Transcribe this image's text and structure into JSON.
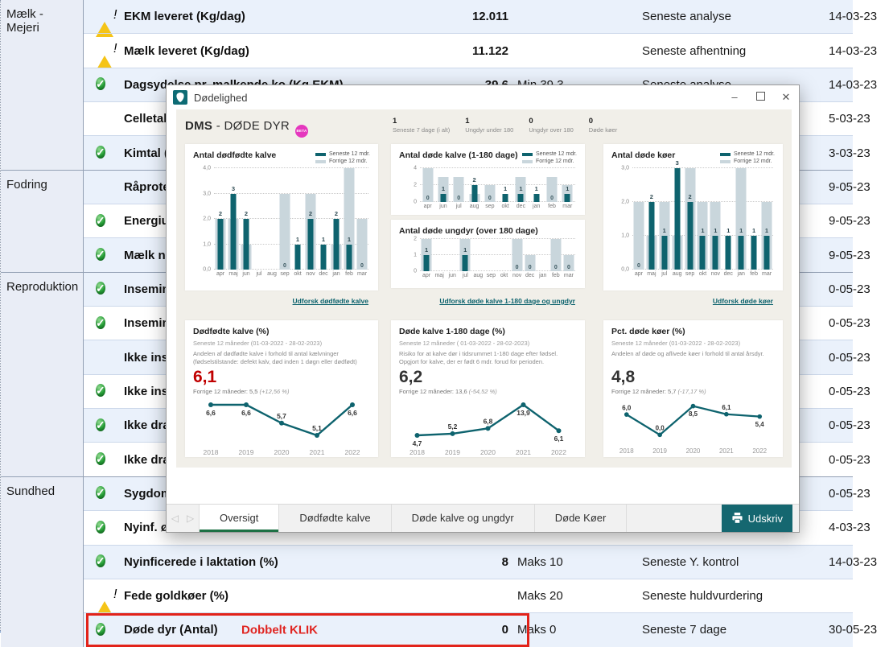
{
  "table": {
    "groups": [
      {
        "label": "Mælk - Mejeri",
        "rows": [
          {
            "status": "warning",
            "label": "EKM leveret (Kg/dag)",
            "value": "12.011",
            "limit": "",
            "metric": "Seneste analyse",
            "date": "14-03-23"
          },
          {
            "status": "warning",
            "label": "Mælk leveret (Kg/dag)",
            "value": "11.122",
            "limit": "",
            "metric": "Seneste afhentning",
            "date": "14-03-23"
          },
          {
            "status": "ok",
            "label": "Dagsydelse pr. malkende ko (Kg EKM)",
            "value": "39,6",
            "limit": "Min 39,3",
            "metric": "Seneste analyse",
            "date": "14-03-23"
          },
          {
            "status": "alert",
            "label": "Celletal",
            "value": "",
            "limit": "",
            "metric": "",
            "date": "5-03-23"
          },
          {
            "status": "ok",
            "label": "Kimtal (",
            "value": "",
            "limit": "",
            "metric": "",
            "date": "3-03-23"
          }
        ]
      },
      {
        "label": "Fodring",
        "rows": [
          {
            "status": "alert",
            "label": "Råprote",
            "value": "",
            "limit": "",
            "metric": "",
            "date": "9-05-23"
          },
          {
            "status": "ok",
            "label": "Energiu",
            "value": "",
            "limit": "",
            "metric": "",
            "date": "9-05-23"
          },
          {
            "status": "ok",
            "label": "Mælk n",
            "value": "",
            "limit": "",
            "metric": "",
            "date": "9-05-23"
          }
        ]
      },
      {
        "label": "Reproduktion",
        "rows": [
          {
            "status": "ok",
            "label": "Insemin",
            "value": "",
            "limit": "",
            "metric": "",
            "date": "0-05-23"
          },
          {
            "status": "ok",
            "label": "Insemin",
            "value": "",
            "limit": "",
            "metric": "",
            "date": "0-05-23"
          },
          {
            "status": "alert",
            "label": "Ikke ins",
            "value": "",
            "limit": "",
            "metric": "",
            "date": "0-05-23"
          },
          {
            "status": "ok",
            "label": "Ikke ins",
            "value": "",
            "limit": "",
            "metric": "",
            "date": "0-05-23"
          },
          {
            "status": "ok",
            "label": "Ikke dra",
            "value": "",
            "limit": "",
            "metric": "",
            "date": "0-05-23"
          },
          {
            "status": "ok",
            "label": "Ikke dra",
            "value": "",
            "limit": "",
            "metric": "",
            "date": "0-05-23"
          }
        ]
      },
      {
        "label": "Sundhed",
        "rows": [
          {
            "status": "ok",
            "label": "Sygdom",
            "value": "",
            "limit": "",
            "metric": "",
            "date": "0-05-23"
          },
          {
            "status": "ok",
            "label": "Nyinf. ø",
            "value": "",
            "limit": "",
            "metric": "",
            "date": "4-03-23"
          },
          {
            "status": "ok",
            "label": "Nyinficerede i laktation (%)",
            "value": "8",
            "limit": "Maks 10",
            "metric": "Seneste Y. kontrol",
            "date": "14-03-23"
          },
          {
            "status": "warning",
            "label": "Fede goldkøer (%)",
            "value": "",
            "limit": "Maks 20",
            "metric": "Seneste huldvurdering",
            "date": ""
          },
          {
            "status": "ok",
            "label": "Døde dyr (Antal)",
            "annotation": "Dobbelt KLIK",
            "value": "0",
            "limit": "Maks 0",
            "metric": "Seneste 7 dage",
            "date": "30-05-23",
            "highlight": true
          }
        ]
      }
    ]
  },
  "dialog": {
    "title": "Dødelighed",
    "header": {
      "title_bold": "DMS",
      "title_rest": " - DØDE DYR",
      "badge": "BETA",
      "stats": [
        {
          "value": "1",
          "label": "Seneste 7 dage (i alt)"
        },
        {
          "value": "1",
          "label": "Ungdyr under 180"
        },
        {
          "value": "0",
          "label": "Ungdyr over 180"
        },
        {
          "value": "0",
          "label": "Døde køer"
        }
      ]
    },
    "legend": {
      "seneste": "Seneste 12 mdr.",
      "forrige": "Forrige 12 mdr."
    },
    "tabs": {
      "items": [
        "Oversigt",
        "Dødfødte kalve",
        "Døde kalve og ungdyr",
        "Døde Køer"
      ],
      "active": 0
    },
    "print_label": "Udskriv"
  },
  "colors": {
    "teal": "#0e636e",
    "light_bar": "#c9d6dc",
    "red_value": "#c00000",
    "tab_green": "#1e7145",
    "badge_pink": "#e537be",
    "link_teal": "#0c626d"
  },
  "chart_data": [
    {
      "id": "stillborn_calves_monthly",
      "type": "bar",
      "title": "Antal dødfødte kalve",
      "categories": [
        "apr",
        "maj",
        "jun",
        "jul",
        "aug",
        "sep",
        "okt",
        "nov",
        "dec",
        "jan",
        "feb",
        "mar"
      ],
      "series": [
        {
          "name": "Seneste 12 mdr.",
          "values": [
            2,
            3,
            2,
            0,
            0,
            0,
            1,
            2,
            1,
            2,
            1,
            0
          ]
        },
        {
          "name": "Forrige 12 mdr.",
          "values": [
            2,
            2,
            1,
            0,
            0,
            3,
            0,
            3,
            0,
            1,
            4,
            2
          ]
        }
      ],
      "ylim": [
        0,
        4
      ],
      "yticks": [
        "0,0",
        "1,0",
        "2,0",
        "3,0",
        "4,0"
      ],
      "link": "Udforsk dødfødte kalve"
    },
    {
      "id": "dead_calves_1_180_monthly",
      "type": "bar",
      "title": "Antal døde kalve (1-180 dage)",
      "categories": [
        "apr",
        "jun",
        "jul",
        "aug",
        "sep",
        "okt",
        "dec",
        "jan",
        "feb",
        "mar"
      ],
      "series": [
        {
          "name": "Seneste 12 mdr.",
          "values": [
            0,
            1,
            0,
            2,
            0,
            1,
            1,
            1,
            0,
            1
          ]
        },
        {
          "name": "Forrige 12 mdr.",
          "values": [
            4,
            3,
            3,
            1,
            2,
            0,
            3,
            0,
            3,
            2
          ]
        }
      ],
      "ylim": [
        0,
        4
      ],
      "yticks": [
        "0",
        "2",
        "4"
      ],
      "link": ""
    },
    {
      "id": "dead_youngstock_over180_monthly",
      "type": "bar",
      "title": "Antal døde ungdyr (over 180 dage)",
      "categories": [
        "apr",
        "maj",
        "jun",
        "jul",
        "aug",
        "sep",
        "okt",
        "nov",
        "dec",
        "jan",
        "feb",
        "mar"
      ],
      "series": [
        {
          "name": "Seneste 12 mdr.",
          "values": [
            1,
            0,
            0,
            1,
            0,
            0,
            0,
            0,
            0,
            0,
            0,
            0
          ]
        },
        {
          "name": "Forrige 12 mdr.",
          "values": [
            2,
            0,
            0,
            2,
            0,
            0,
            0,
            2,
            1,
            0,
            2,
            1
          ]
        }
      ],
      "ylim": [
        0,
        2
      ],
      "yticks": [
        "0",
        "1",
        "2"
      ],
      "link": "Udforsk døde kalve 1-180 dage og ungdyr"
    },
    {
      "id": "dead_cows_monthly",
      "type": "bar",
      "title": "Antal døde køer",
      "categories": [
        "apr",
        "maj",
        "jul",
        "aug",
        "sep",
        "okt",
        "nov",
        "dec",
        "jan",
        "feb",
        "mar"
      ],
      "series": [
        {
          "name": "Seneste 12 mdr.",
          "values": [
            0,
            2,
            1,
            3,
            2,
            1,
            1,
            1,
            1,
            1,
            1
          ]
        },
        {
          "name": "Forrige 12 mdr.",
          "values": [
            2,
            1,
            2,
            1,
            3,
            2,
            2,
            0,
            3,
            0,
            2
          ]
        }
      ],
      "ylim": [
        0,
        3
      ],
      "yticks": [
        "0,0",
        "1,0",
        "2,0",
        "3,0"
      ],
      "link": "Udforsk døde køer"
    },
    {
      "id": "stillborn_pct_yearly",
      "type": "line",
      "title": "Dødfødte kalve (%)",
      "subtitle": "Seneste 12 måneder (01-03-2022 - 28-02-2023)",
      "description": "Andelen af dødfødte kalve i forhold til antal kælvninger (fødselstilstande: defekt kalv, død inden 1 døgn eller dødfødt)",
      "current": "6,1",
      "current_red": true,
      "previous": "Forrige 12 måneder: 5,5",
      "previous_pct": "(+12,56 %)",
      "x": [
        "2018",
        "2019",
        "2020",
        "2021",
        "2022"
      ],
      "values": [
        6.6,
        6.6,
        5.7,
        5.1,
        6.6
      ],
      "labels": [
        "6,6",
        "6,6",
        "5,7",
        "5,1",
        "6,6"
      ],
      "label_pos": [
        "below",
        "below",
        "above",
        "above",
        "below"
      ]
    },
    {
      "id": "dead_calves_pct_yearly",
      "type": "line",
      "title": "Døde kalve 1-180 dage (%)",
      "subtitle": "Seneste 12 måneder ( 01-03-2022 - 28-02-2023)",
      "description": "Risiko for at kalve dør i tidsrummet 1-180 dage efter fødsel. Opgjort for kalve, der er født 6 mdr. forud for perioden.",
      "current": "6,2",
      "current_red": false,
      "previous": "Forrige 12 måneder: 13,6",
      "previous_pct": "(-54,52 %)",
      "x": [
        "2018",
        "2019",
        "2020",
        "2021",
        "2022"
      ],
      "values": [
        4.7,
        5.2,
        6.8,
        13.9,
        6.1
      ],
      "labels": [
        "4,7",
        "5,2",
        "6,8",
        "13,9",
        "6,1"
      ],
      "label_pos": [
        "below",
        "above",
        "above",
        "below",
        "below"
      ]
    },
    {
      "id": "dead_cows_pct_yearly",
      "type": "line",
      "title": "Pct. døde køer (%)",
      "subtitle": "Seneste 12 måneder (01-03-2022 - 28-02-2023)",
      "description": "Andelen af døde og aflivede køer i forhold til antal årsdyr.",
      "current": "4,8",
      "current_red": false,
      "previous": "Forrige 12 måneder: 5,7",
      "previous_pct": "(-17,17 %)",
      "x": [
        "2018",
        "2019",
        "2020",
        "2021",
        "2022"
      ],
      "values": [
        6.0,
        0.0,
        8.5,
        6.1,
        5.4
      ],
      "labels": [
        "6,0",
        "0,0",
        "8,5",
        "6,1",
        "5,4"
      ],
      "label_pos": [
        "above",
        "above",
        "below",
        "above",
        "below"
      ]
    }
  ]
}
